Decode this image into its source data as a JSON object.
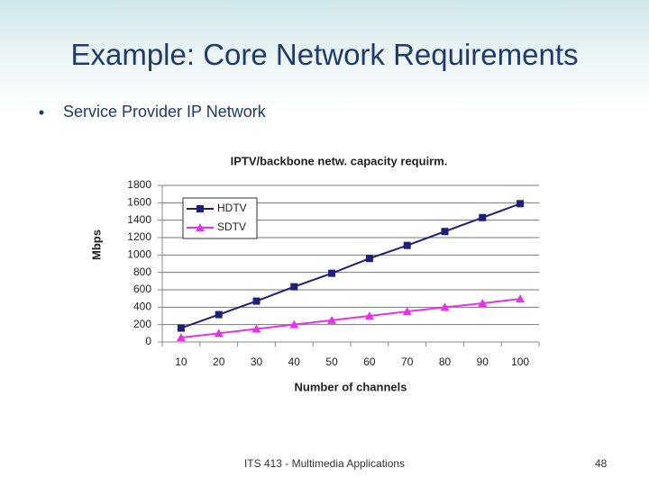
{
  "slide": {
    "title": "Example: Core Network Requirements",
    "bullet": "Service Provider IP Network",
    "footer": "ITS 413 - Multimedia Applications",
    "page_number": 48
  },
  "chart_data": {
    "type": "line",
    "title": "IPTV/backbone netw. capacity requirm.",
    "x_label": "Number of channels",
    "y_label": "Mbps",
    "categories": [
      "10",
      "20",
      "30",
      "40",
      "50",
      "60",
      "70",
      "80",
      "90",
      "100"
    ],
    "series": [
      {
        "name": "HDTV",
        "color": "#1f1f7a",
        "marker": "square",
        "values": [
          160,
          315,
          470,
          635,
          790,
          960,
          1110,
          1270,
          1430,
          1590
        ]
      },
      {
        "name": "SDTV",
        "color": "#e633e6",
        "marker": "triangle",
        "values": [
          50,
          100,
          150,
          200,
          250,
          300,
          350,
          400,
          445,
          495
        ]
      }
    ],
    "ylim": [
      0,
      1800
    ],
    "yticks": [
      0,
      200,
      400,
      600,
      800,
      1000,
      1200,
      1400,
      1600,
      1800
    ],
    "grid": true,
    "legend": "upper left"
  }
}
